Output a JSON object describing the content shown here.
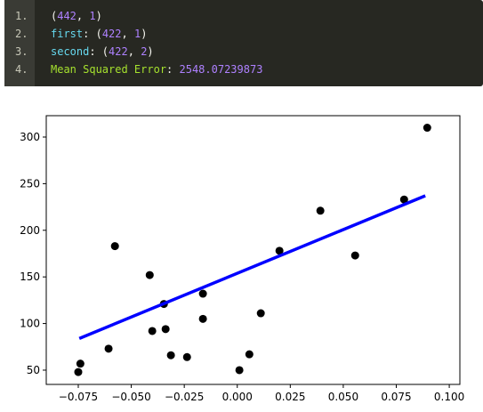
{
  "code": {
    "lines": [
      {
        "number": "1.",
        "tokens": [
          {
            "text": "(",
            "color": "#f8f8f2"
          },
          {
            "text": "442",
            "color": "#ae81ff"
          },
          {
            "text": ", ",
            "color": "#f8f8f2"
          },
          {
            "text": "1",
            "color": "#ae81ff"
          },
          {
            "text": ")",
            "color": "#f8f8f2"
          }
        ]
      },
      {
        "number": "2.",
        "tokens": [
          {
            "text": "first",
            "color": "#66d9ef"
          },
          {
            "text": ": (",
            "color": "#f8f8f2"
          },
          {
            "text": "422",
            "color": "#ae81ff"
          },
          {
            "text": ", ",
            "color": "#f8f8f2"
          },
          {
            "text": "1",
            "color": "#ae81ff"
          },
          {
            "text": ")",
            "color": "#f8f8f2"
          }
        ]
      },
      {
        "number": "3.",
        "tokens": [
          {
            "text": "second",
            "color": "#66d9ef"
          },
          {
            "text": ": (",
            "color": "#f8f8f2"
          },
          {
            "text": "422",
            "color": "#ae81ff"
          },
          {
            "text": ", ",
            "color": "#f8f8f2"
          },
          {
            "text": "2",
            "color": "#ae81ff"
          },
          {
            "text": ")",
            "color": "#f8f8f2"
          }
        ]
      },
      {
        "number": "4.",
        "tokens": [
          {
            "text": "Mean Squared Error",
            "color": "#a6e22e"
          },
          {
            "text": ": ",
            "color": "#f8f8f2"
          },
          {
            "text": "2548.07239873",
            "color": "#ae81ff"
          }
        ]
      }
    ]
  },
  "chart_data": {
    "type": "scatter",
    "series": [
      {
        "type": "scatter",
        "color": "#000000",
        "x": [
          -0.075,
          -0.074,
          -0.0607,
          -0.0577,
          -0.0413,
          -0.0401,
          -0.0346,
          -0.0338,
          -0.0313,
          -0.0237,
          -0.0162,
          -0.0162,
          0.001,
          0.0057,
          0.0111,
          0.0199,
          0.0392,
          0.0556,
          0.0787,
          0.0896
        ],
        "values": [
          48,
          57,
          73,
          183,
          152,
          92,
          121,
          94,
          66,
          64,
          132,
          105,
          50,
          67,
          111,
          178,
          221,
          173,
          233,
          310
        ]
      },
      {
        "type": "line",
        "color": "#0000ff",
        "x": [
          -0.0745,
          0.0887
        ],
        "values": [
          84,
          237
        ]
      }
    ],
    "xlim": [
      -0.0901,
      0.105
    ],
    "ylim": [
      34.7,
      322.9
    ],
    "xticks": [
      {
        "value": -0.075,
        "label": "−0.075"
      },
      {
        "value": -0.05,
        "label": "−0.050"
      },
      {
        "value": -0.025,
        "label": "−0.025"
      },
      {
        "value": 0,
        "label": "0.000"
      },
      {
        "value": 0.025,
        "label": "0.025"
      },
      {
        "value": 0.05,
        "label": "0.050"
      },
      {
        "value": 0.075,
        "label": "0.075"
      },
      {
        "value": 0.1,
        "label": "0.100"
      }
    ],
    "yticks": [
      50,
      100,
      150,
      200,
      250,
      300
    ]
  }
}
